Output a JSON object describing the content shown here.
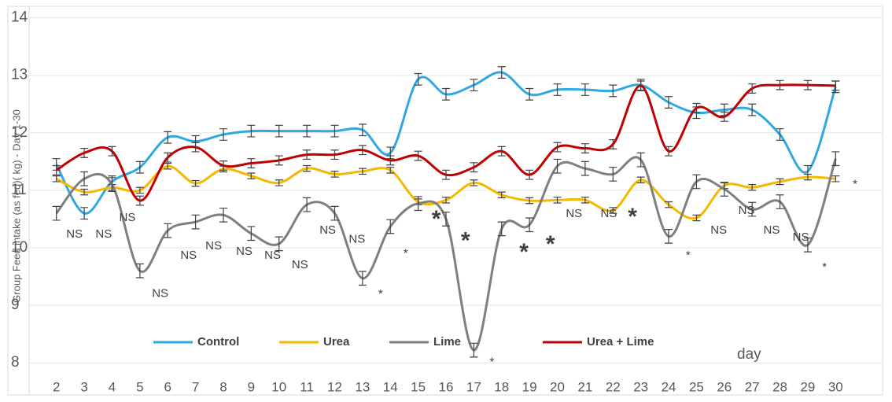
{
  "chart_data": {
    "type": "line",
    "y_label": "Group Feed intake (as fed)( kg) - Day 1-30",
    "x_note": "day",
    "categories": [
      "2",
      "3",
      "4",
      "5",
      "6",
      "7",
      "8",
      "9",
      "10",
      "11",
      "12",
      "13",
      "14",
      "15",
      "16",
      "17",
      "18",
      "19",
      "20",
      "21",
      "22",
      "23",
      "24",
      "25",
      "26",
      "27",
      "28",
      "29",
      "30"
    ],
    "ylim": [
      7.77,
      14.2
    ],
    "yticks": [
      8,
      9,
      10,
      11,
      12,
      13,
      14
    ],
    "grid": true,
    "legend": "bottom",
    "series": [
      {
        "name": "Control",
        "color": "#2fa9e0",
        "error": 0.1,
        "values": [
          11.45,
          10.6,
          11.15,
          11.4,
          11.92,
          11.85,
          11.97,
          12.03,
          12.03,
          12.03,
          12.03,
          12.05,
          11.65,
          12.93,
          12.67,
          12.83,
          13.05,
          12.67,
          12.75,
          12.75,
          12.73,
          12.83,
          12.53,
          12.35,
          12.4,
          12.4,
          11.97,
          11.33,
          12.8
        ]
      },
      {
        "name": "Urea",
        "color": "#f5b800",
        "error": 0.05,
        "values": [
          11.2,
          10.97,
          11.05,
          11.0,
          11.42,
          11.12,
          11.37,
          11.25,
          11.13,
          11.38,
          11.28,
          11.33,
          11.35,
          10.8,
          10.83,
          11.13,
          10.92,
          10.82,
          10.83,
          10.83,
          10.65,
          11.18,
          10.75,
          10.52,
          11.08,
          11.05,
          11.15,
          11.23,
          11.2
        ]
      },
      {
        "name": "Lime",
        "color": "#7f7f7f",
        "error": 0.12,
        "values": [
          10.6,
          11.2,
          11.1,
          9.6,
          10.3,
          10.45,
          10.57,
          10.25,
          10.07,
          10.75,
          10.6,
          9.47,
          10.37,
          10.77,
          10.5,
          8.22,
          10.33,
          10.4,
          11.42,
          11.38,
          11.28,
          11.53,
          10.2,
          11.15,
          11.02,
          10.67,
          10.8,
          10.05,
          11.55
        ]
      },
      {
        "name": "Urea + Lime",
        "color": "#c00000",
        "error": 0.08,
        "values": [
          11.35,
          11.65,
          11.68,
          10.82,
          11.57,
          11.75,
          11.43,
          11.47,
          11.52,
          11.62,
          11.62,
          11.7,
          11.52,
          11.6,
          11.27,
          11.4,
          11.68,
          11.27,
          11.75,
          11.73,
          11.8,
          12.82,
          11.68,
          12.43,
          12.28,
          12.77,
          12.83,
          12.83,
          12.82
        ]
      }
    ],
    "annotations": [
      {
        "text": "NS",
        "x": 2.65,
        "y": 10.23
      },
      {
        "text": "NS",
        "x": 3.7,
        "y": 10.23
      },
      {
        "text": "NS",
        "x": 4.55,
        "y": 10.52
      },
      {
        "text": "NS",
        "x": 5.73,
        "y": 9.2
      },
      {
        "text": "NS",
        "x": 6.75,
        "y": 9.86
      },
      {
        "text": "NS",
        "x": 7.65,
        "y": 10.03
      },
      {
        "text": "NS",
        "x": 8.75,
        "y": 9.93
      },
      {
        "text": "NS",
        "x": 9.77,
        "y": 9.86
      },
      {
        "text": "NS",
        "x": 10.75,
        "y": 9.7
      },
      {
        "text": "NS",
        "x": 11.75,
        "y": 10.3
      },
      {
        "text": "NS",
        "x": 12.8,
        "y": 10.14
      },
      {
        "text": "*",
        "x": 13.65,
        "y": 9.19
      },
      {
        "text": "*",
        "x": 14.55,
        "y": 9.9
      },
      {
        "text": "*",
        "x": 15.65,
        "y": 10.48,
        "big": true
      },
      {
        "text": "*",
        "x": 16.7,
        "y": 10.1,
        "big": true
      },
      {
        "text": "*",
        "x": 17.65,
        "y": 8.01
      },
      {
        "text": "*",
        "x": 18.8,
        "y": 9.9,
        "big": true
      },
      {
        "text": "*",
        "x": 19.75,
        "y": 10.04,
        "big": true
      },
      {
        "text": "NS",
        "x": 20.6,
        "y": 10.59
      },
      {
        "text": "NS",
        "x": 21.85,
        "y": 10.59
      },
      {
        "text": "*",
        "x": 22.7,
        "y": 10.52,
        "big": true
      },
      {
        "text": "*",
        "x": 24.7,
        "y": 9.86
      },
      {
        "text": "NS",
        "x": 25.8,
        "y": 10.3
      },
      {
        "text": "NS",
        "x": 26.8,
        "y": 10.64
      },
      {
        "text": "NS",
        "x": 27.7,
        "y": 10.3
      },
      {
        "text": "NS",
        "x": 28.75,
        "y": 10.18
      },
      {
        "text": "*",
        "x": 29.6,
        "y": 9.66
      },
      {
        "text": "*",
        "x": 30.7,
        "y": 11.1
      }
    ]
  }
}
